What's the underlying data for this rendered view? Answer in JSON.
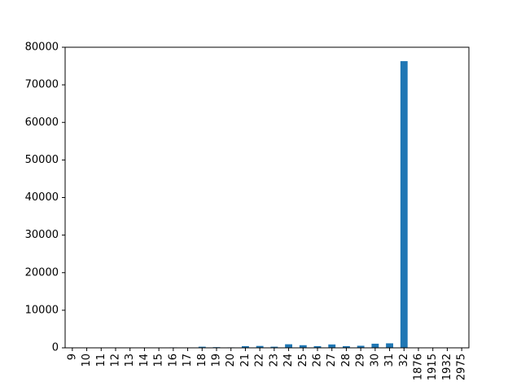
{
  "chart_data": {
    "type": "bar",
    "categories": [
      "9",
      "10",
      "11",
      "12",
      "13",
      "14",
      "15",
      "16",
      "17",
      "18",
      "19",
      "20",
      "21",
      "22",
      "23",
      "24",
      "25",
      "26",
      "27",
      "28",
      "29",
      "30",
      "31",
      "32",
      "1876",
      "1915",
      "1932",
      "2975"
    ],
    "values": [
      2,
      5,
      10,
      20,
      35,
      60,
      90,
      120,
      100,
      300,
      180,
      120,
      450,
      500,
      300,
      950,
      700,
      450,
      900,
      450,
      550,
      1100,
      1200,
      76300,
      1,
      1,
      1,
      1
    ],
    "title": "",
    "xlabel": "",
    "ylabel": "",
    "ylim": [
      0,
      80000
    ],
    "yticks": [
      0,
      10000,
      20000,
      30000,
      40000,
      50000,
      60000,
      70000,
      80000
    ],
    "grid": false,
    "bar_color": "#1f77b4"
  }
}
